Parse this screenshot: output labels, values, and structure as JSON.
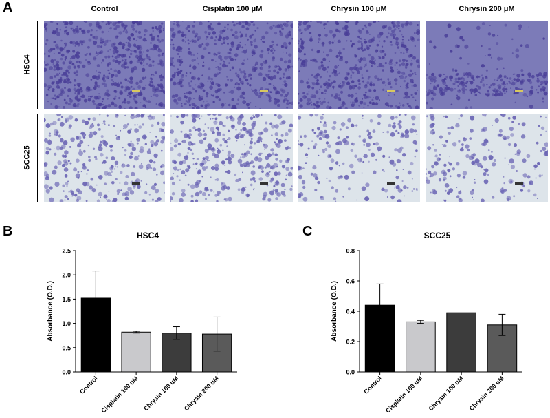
{
  "figure": {
    "panel_a": "A",
    "panel_b": "B",
    "panel_c": "C",
    "columns": [
      "Control",
      "Cisplatin 100 μM",
      "Chrysin 100 μM",
      "Chrysin 200 μM"
    ],
    "rows": [
      "HSC4",
      "SCC25"
    ],
    "micrograph_colors": {
      "HSC4": {
        "background": "#7c7bb8",
        "stain": "#4a3f98"
      },
      "SCC25": {
        "background": "#dde4ea",
        "stain": "#6a64b4"
      }
    },
    "stain_density": {
      "HSC4": [
        0.95,
        0.7,
        0.75,
        0.3
      ],
      "SCC25": [
        0.35,
        0.45,
        0.15,
        0.15
      ]
    }
  },
  "chart_data": [
    {
      "type": "bar",
      "title": "HSC4",
      "xlabel": "",
      "ylabel": "Absorbance (O.D.)",
      "categories": [
        "Control",
        "Cisplatin 100 uM",
        "Chrysin 100 uM",
        "Chrysin 200 uM"
      ],
      "values": [
        1.52,
        0.82,
        0.8,
        0.78
      ],
      "errors": [
        0.56,
        0.02,
        0.13,
        0.35
      ],
      "colors": [
        "#000000",
        "#c9c9cc",
        "#3c3c3c",
        "#5a5a5a"
      ],
      "ylim": [
        0,
        2.5
      ],
      "yticks": [
        "0.0",
        "0.5",
        "1.0",
        "1.5",
        "2.0",
        "2.5"
      ],
      "grid": false
    },
    {
      "type": "bar",
      "title": "SCC25",
      "xlabel": "",
      "ylabel": "Absorbance (O.D.)",
      "categories": [
        "Control",
        "Cisplatin 100 uM",
        "Chrysin 100 uM",
        "Chrysin 200 uM"
      ],
      "values": [
        0.44,
        0.33,
        0.39,
        0.31
      ],
      "errors": [
        0.14,
        0.01,
        0.0,
        0.07
      ],
      "colors": [
        "#000000",
        "#c9c9cc",
        "#3c3c3c",
        "#5a5a5a"
      ],
      "ylim": [
        0,
        0.8
      ],
      "yticks": [
        "0.0",
        "0.2",
        "0.4",
        "0.6",
        "0.8"
      ],
      "grid": false
    }
  ]
}
